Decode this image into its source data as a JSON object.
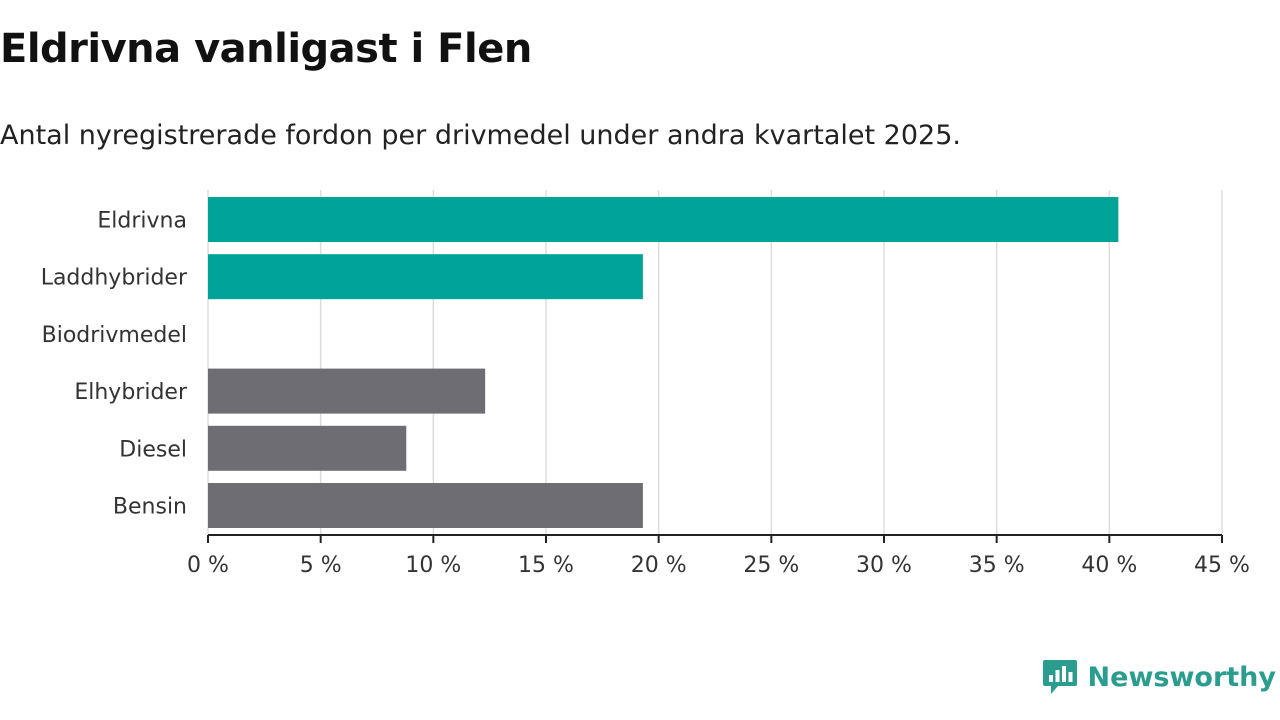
{
  "title": "Eldrivna vanligast i Flen",
  "subtitle": "Antal nyregistrerade fordon per drivmedel under andra kvartalet 2025.",
  "brand": {
    "name": "Newsworthy",
    "icon": "newsworthy-logo-icon"
  },
  "colors": {
    "highlight": "#00a398",
    "neutral": "#6e6d74",
    "grid": "#dddddd",
    "axis": "#222222"
  },
  "chart_data": {
    "type": "bar",
    "orientation": "horizontal",
    "categories": [
      "Eldrivna",
      "Laddhybrider",
      "Biodrivmedel",
      "Elhybrider",
      "Diesel",
      "Bensin"
    ],
    "values": [
      40.4,
      19.3,
      0,
      12.3,
      8.8,
      19.3
    ],
    "bar_colors": [
      "#00a398",
      "#00a398",
      "#6e6d74",
      "#6e6d74",
      "#6e6d74",
      "#6e6d74"
    ],
    "xlim": [
      0,
      45
    ],
    "xticks": [
      0,
      5,
      10,
      15,
      20,
      25,
      30,
      35,
      40,
      45
    ],
    "xtick_labels": [
      "0 %",
      "5 %",
      "10 %",
      "15 %",
      "20 %",
      "25 %",
      "30 %",
      "35 %",
      "40 %",
      "45 %"
    ],
    "grid": true
  }
}
